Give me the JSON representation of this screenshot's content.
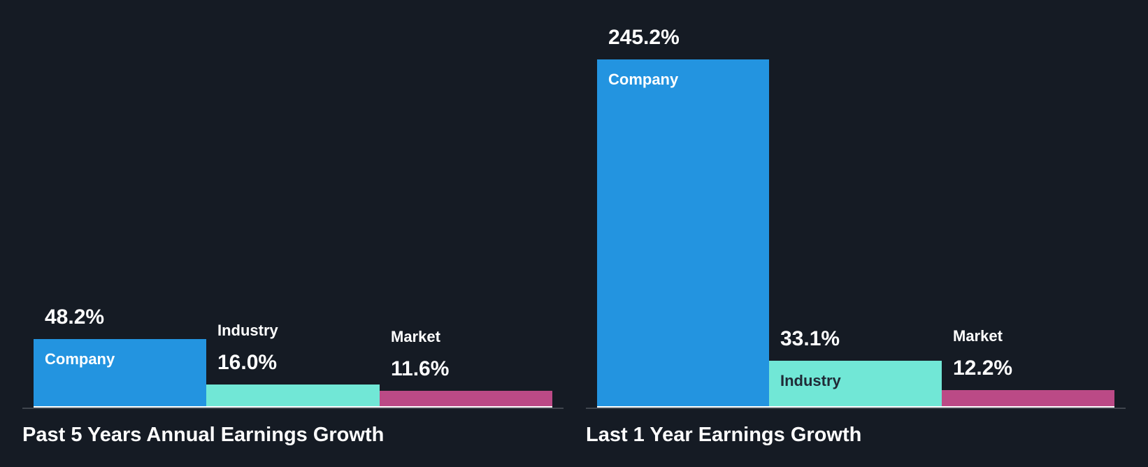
{
  "colors": {
    "background": "#151b24",
    "company": "#2394e0",
    "industry": "#71e7d6",
    "market": "#bb4a86",
    "baseline": "#3f454d",
    "dark_text": "#202b37"
  },
  "panels": [
    {
      "title": "Past 5 Years Annual Earnings Growth",
      "bars": [
        {
          "name": "Company",
          "value": 48.2,
          "value_label": "48.2%"
        },
        {
          "name": "Industry",
          "value": 16.0,
          "value_label": "16.0%"
        },
        {
          "name": "Market",
          "value": 11.6,
          "value_label": "11.6%"
        }
      ]
    },
    {
      "title": "Last 1 Year Earnings Growth",
      "bars": [
        {
          "name": "Company",
          "value": 245.2,
          "value_label": "245.2%"
        },
        {
          "name": "Industry",
          "value": 33.1,
          "value_label": "33.1%"
        },
        {
          "name": "Market",
          "value": 12.2,
          "value_label": "12.2%"
        }
      ]
    }
  ],
  "chart_data": [
    {
      "type": "bar",
      "title": "Past 5 Years Annual Earnings Growth",
      "categories": [
        "Company",
        "Industry",
        "Market"
      ],
      "values": [
        48.2,
        16.0,
        11.6
      ],
      "unit": "%",
      "xlabel": "",
      "ylabel": "",
      "grid": false,
      "legend": "none"
    },
    {
      "type": "bar",
      "title": "Last 1 Year Earnings Growth",
      "categories": [
        "Company",
        "Industry",
        "Market"
      ],
      "values": [
        245.2,
        33.1,
        12.2
      ],
      "unit": "%",
      "xlabel": "",
      "ylabel": "",
      "grid": false,
      "legend": "none"
    }
  ]
}
